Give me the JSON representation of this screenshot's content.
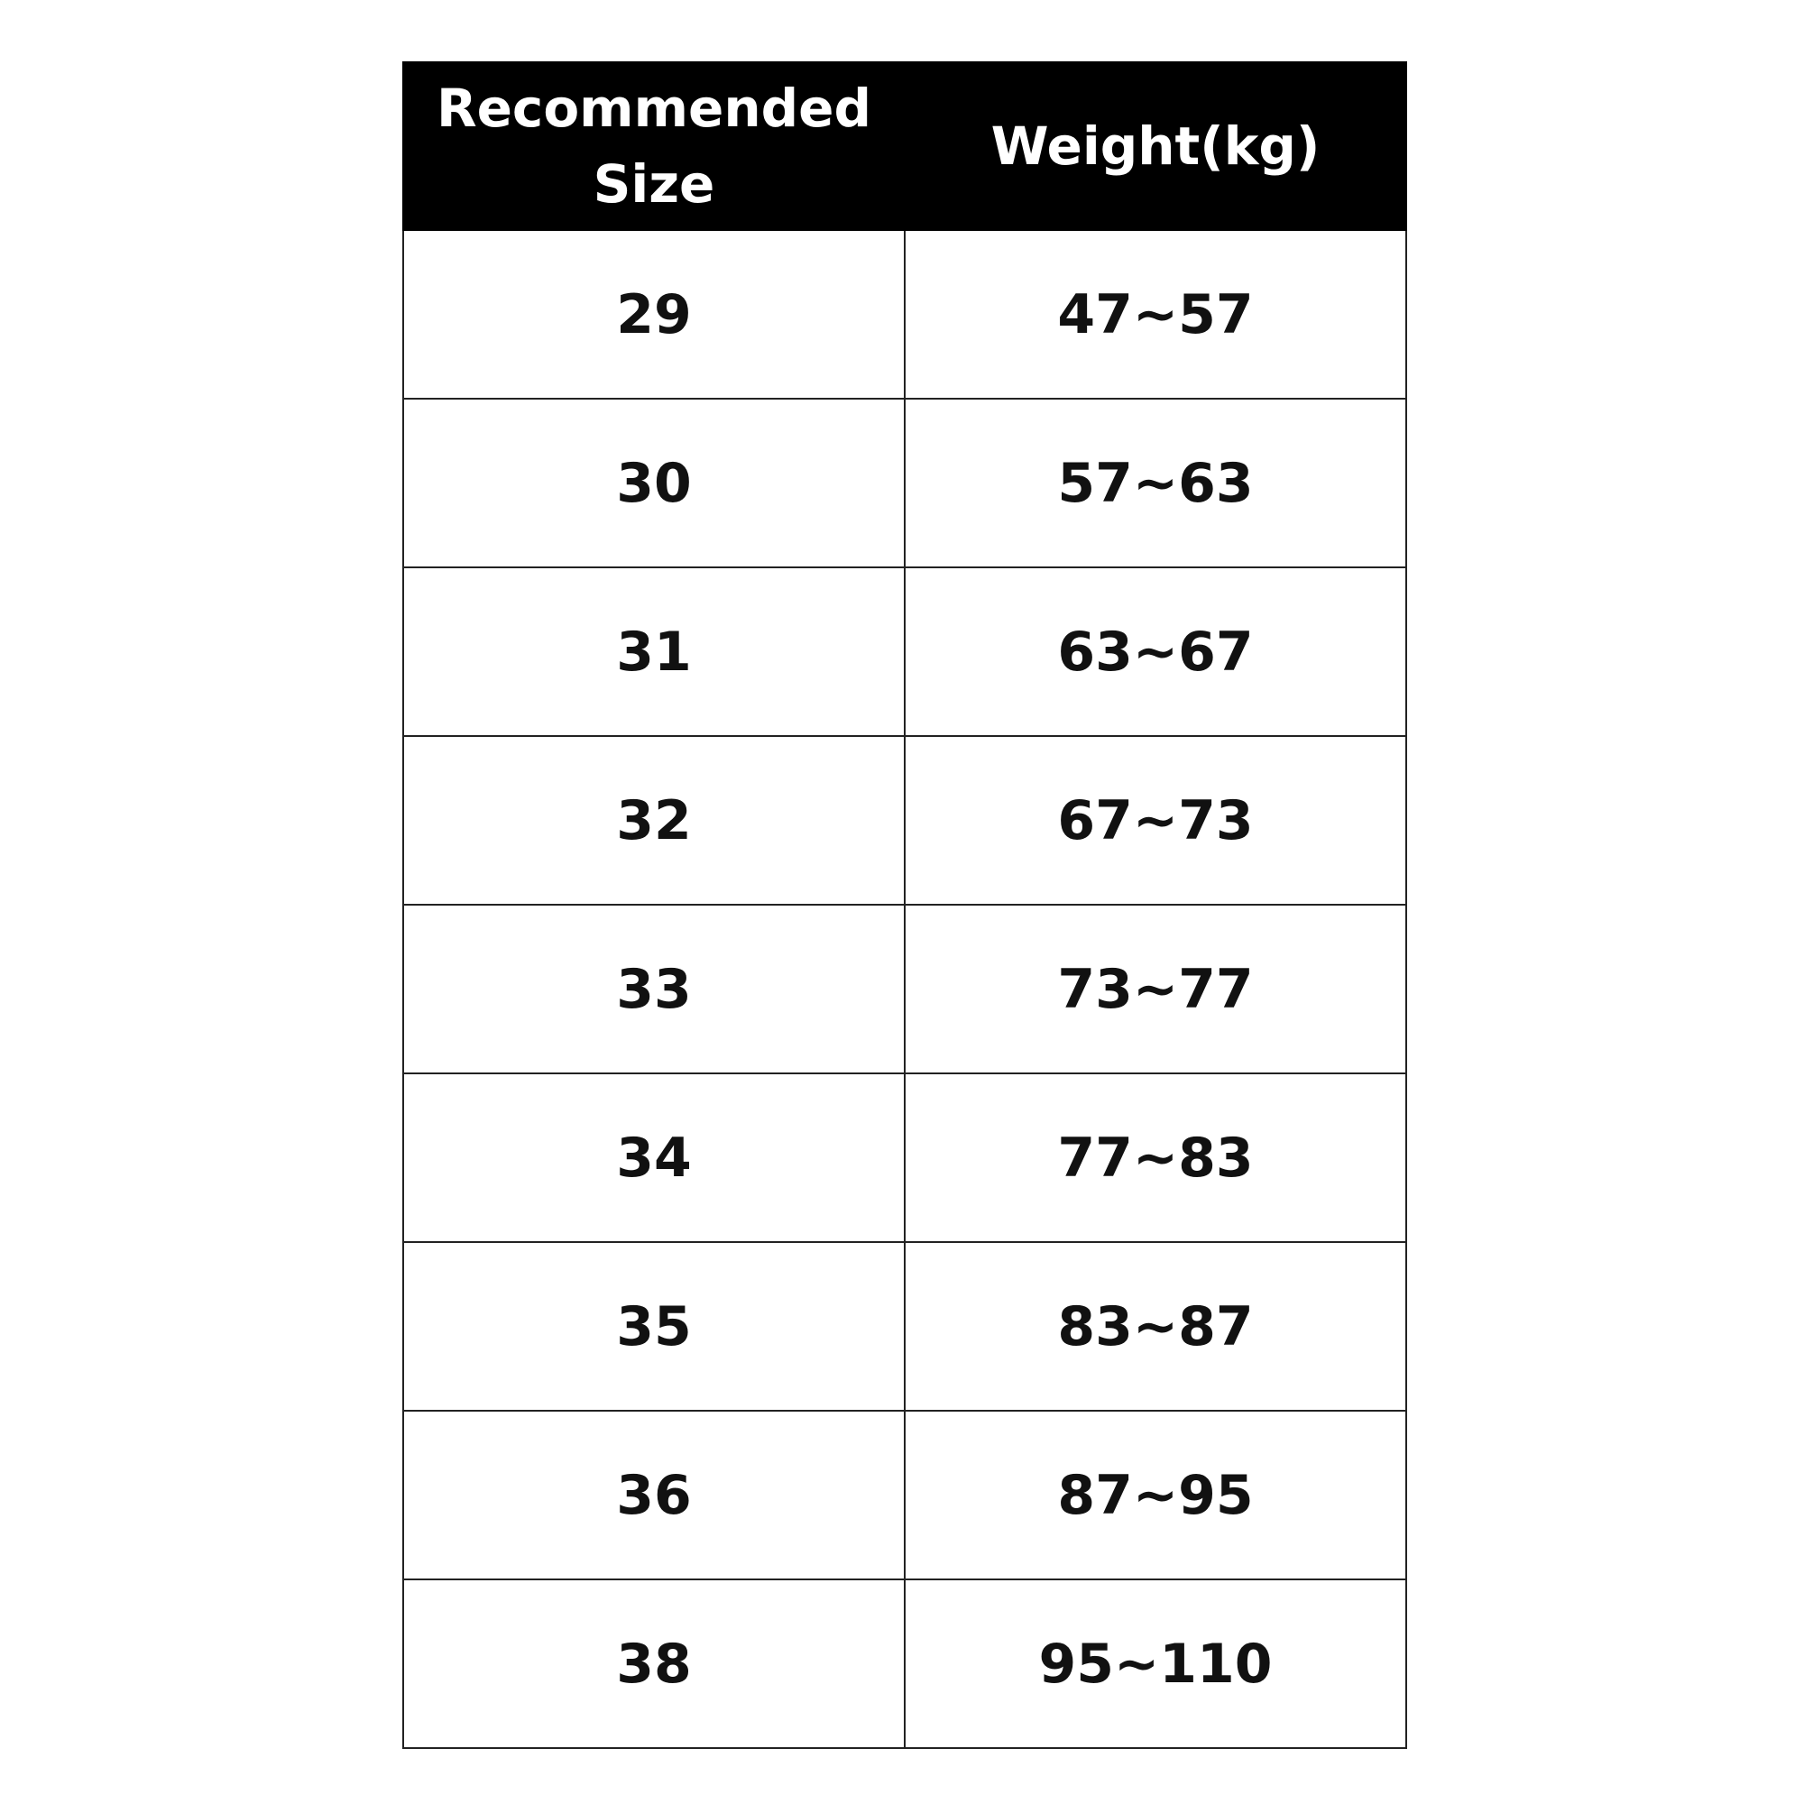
{
  "table": {
    "headers": [
      "Recommended Size",
      "Weight(kg)"
    ],
    "rows": [
      [
        "29",
        "47~57"
      ],
      [
        "30",
        "57~63"
      ],
      [
        "31",
        "63~67"
      ],
      [
        "32",
        "67~73"
      ],
      [
        "33",
        "73~77"
      ],
      [
        "34",
        "77~83"
      ],
      [
        "35",
        "83~87"
      ],
      [
        "36",
        "87~95"
      ],
      [
        "38",
        "95~110"
      ]
    ]
  }
}
